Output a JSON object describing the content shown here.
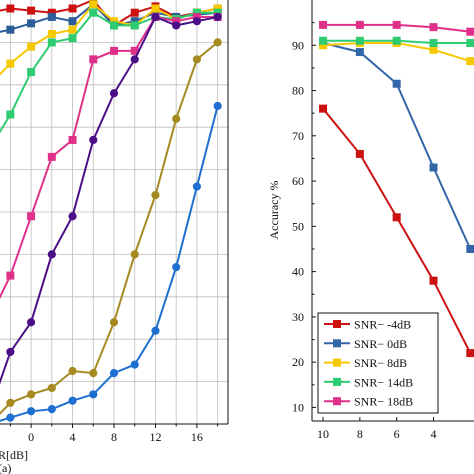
{
  "chart_data": [
    {
      "type": "line",
      "panel_label": "(a)",
      "xlabel": "R[dB]",
      "ylabel": "",
      "x_ticks": [
        "0",
        "4",
        "8",
        "12",
        "16"
      ],
      "xlim": [
        -3,
        19
      ],
      "ylim": [
        0,
        100
      ],
      "grid": true,
      "legend": null,
      "series": [
        {
          "color": "#cc1111",
          "marker": "square",
          "x": [
            -4,
            -2,
            0,
            2,
            4,
            6,
            8,
            10,
            12,
            14,
            16,
            18
          ],
          "y": [
            97,
            98,
            97.5,
            97,
            98,
            100,
            94,
            97,
            98.5,
            96,
            97,
            98
          ]
        },
        {
          "color": "#2e5e99",
          "marker": "square",
          "x": [
            -4,
            -2,
            0,
            2,
            4,
            6,
            8,
            10,
            12,
            14,
            16,
            18
          ],
          "y": [
            92,
            93,
            94.5,
            96,
            95,
            99,
            94,
            95,
            97,
            96,
            96.5,
            97
          ]
        },
        {
          "color": "#f5c800",
          "marker": "square",
          "x": [
            -4,
            -2,
            0,
            2,
            4,
            6,
            8,
            10,
            12,
            14,
            16,
            18
          ],
          "y": [
            80,
            85,
            89,
            92,
            93,
            99,
            95,
            94,
            98,
            95.5,
            97,
            98
          ]
        },
        {
          "color": "#2ecc71",
          "marker": "square",
          "x": [
            -4,
            -2,
            0,
            2,
            4,
            6,
            8,
            10,
            12,
            14,
            16,
            18
          ],
          "y": [
            65,
            73,
            83,
            90,
            91,
            97,
            94,
            94,
            96,
            95.5,
            97,
            97
          ]
        },
        {
          "color": "#e0318a",
          "marker": "square",
          "x": [
            -4,
            -2,
            0,
            2,
            4,
            6,
            8,
            10,
            12,
            14,
            16,
            18
          ],
          "y": [
            25,
            35,
            49,
            63,
            67,
            86,
            88,
            88,
            96,
            95,
            96,
            96
          ]
        },
        {
          "color": "#4b0f88",
          "marker": "circle",
          "x": [
            -4,
            -2,
            0,
            2,
            4,
            6,
            8,
            10,
            12,
            14,
            16,
            18
          ],
          "y": [
            3,
            17,
            24,
            40,
            49,
            67,
            78,
            86,
            96,
            94,
            95,
            96
          ]
        },
        {
          "color": "#a48a20",
          "marker": "circle",
          "x": [
            -4,
            -2,
            0,
            2,
            4,
            6,
            8,
            10,
            12,
            14,
            16,
            18
          ],
          "y": [
            0,
            5,
            7,
            8.5,
            12.5,
            12,
            24,
            40,
            54,
            72,
            86,
            90
          ]
        },
        {
          "color": "#1f6fd0",
          "marker": "circle",
          "x": [
            -4,
            -2,
            0,
            2,
            4,
            6,
            8,
            10,
            12,
            14,
            16,
            18
          ],
          "y": [
            0,
            1.5,
            3,
            3.5,
            5.5,
            7,
            12,
            14,
            22,
            37,
            56,
            75
          ]
        }
      ]
    },
    {
      "type": "line",
      "ylabel": "Accuracy %",
      "x_ticks": [
        "10",
        "8",
        "6",
        "4"
      ],
      "y_ticks": [
        "10",
        "20",
        "30",
        "40",
        "50",
        "60",
        "70",
        "80",
        "90"
      ],
      "xlim": [
        10.6,
        1.8
      ],
      "ylim": [
        7,
        100
      ],
      "grid": false,
      "legend": "bottom-left",
      "series": [
        {
          "name": "SNR− -4dB",
          "color": "#cc1111",
          "x": [
            10,
            8,
            6,
            4,
            2
          ],
          "y": [
            76,
            66,
            52,
            38,
            22
          ]
        },
        {
          "name": "SNR− 0dB",
          "color": "#3266a8",
          "x": [
            10,
            8,
            6,
            4,
            2
          ],
          "y": [
            90.5,
            88.5,
            81.5,
            63,
            45
          ]
        },
        {
          "name": "SNR− 8dB",
          "color": "#f5c800",
          "x": [
            10,
            8,
            6,
            4,
            2
          ],
          "y": [
            90,
            90.5,
            90.5,
            89,
            86.5
          ]
        },
        {
          "name": "SNR− 14dB",
          "color": "#2ecc71",
          "x": [
            10,
            8,
            6,
            4,
            2
          ],
          "y": [
            91,
            91,
            91,
            90.5,
            90.5
          ]
        },
        {
          "name": "SNR− 18dB",
          "color": "#e0318a",
          "x": [
            10,
            8,
            6,
            4,
            2
          ],
          "y": [
            94.5,
            94.5,
            94.5,
            94,
            93
          ]
        }
      ]
    }
  ]
}
